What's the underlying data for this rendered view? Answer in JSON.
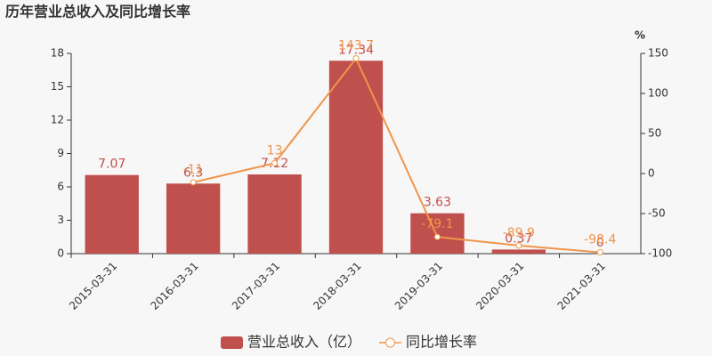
{
  "chart_data": {
    "type": "combo",
    "title": "历年营业总收入及同比增长率",
    "y2_label": "%",
    "categories": [
      "2015-03-31",
      "2016-03-31",
      "2017-03-31",
      "2018-03-31",
      "2019-03-31",
      "2020-03-31",
      "2021-03-31"
    ],
    "series": [
      {
        "name": "营业总收入（亿）",
        "type": "bar",
        "color": "#c0504d",
        "values": [
          7.07,
          6.3,
          7.12,
          17.34,
          3.63,
          0.37,
          0
        ]
      },
      {
        "name": "同比增长率",
        "type": "line",
        "axis": "y2",
        "color": "#f0954a",
        "values": [
          null,
          -11,
          13,
          143.7,
          -79.1,
          -89.9,
          -98.4
        ]
      }
    ],
    "ylim": [
      0,
      18
    ],
    "yticks": [
      0,
      3,
      6,
      9,
      12,
      15,
      18
    ],
    "y2lim": [
      -100,
      150
    ],
    "y2ticks": [
      -100,
      -50,
      0,
      50,
      100,
      150
    ],
    "legend": "bottom"
  }
}
